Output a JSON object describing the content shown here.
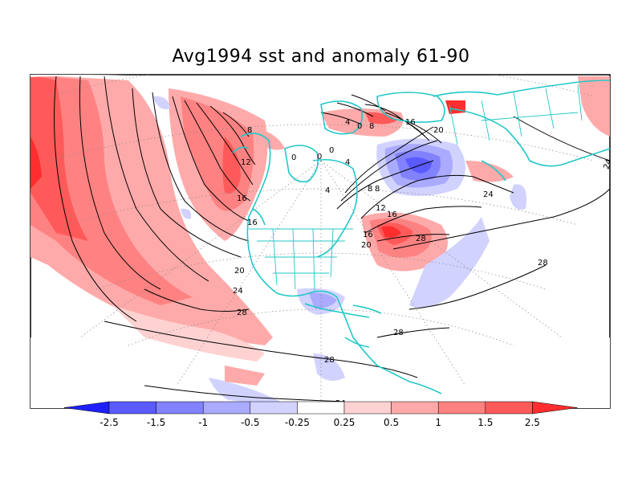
{
  "title": "Avg1994 sst and anomaly 61-90",
  "contours": {
    "labels": [
      "8",
      "4",
      "0",
      "0",
      "0",
      "4",
      "12",
      "16",
      "16",
      "20",
      "24",
      "28",
      "16",
      "20",
      "8",
      "4",
      "0",
      "8",
      "8",
      "12",
      "16",
      "16",
      "20",
      "24",
      "28",
      "28",
      "28",
      "28",
      "24",
      "24"
    ]
  },
  "colorbar": {
    "ticks": [
      "-2.5",
      "-1.5",
      "-1",
      "-0.5",
      "-0.25",
      "0.25",
      "0.5",
      "1",
      "1.5",
      "2.5"
    ],
    "colors": [
      "#1f1fff",
      "#5a5aff",
      "#8282ff",
      "#aaaaff",
      "#d2d2ff",
      "#ffffff",
      "#ffd2d2",
      "#ffaaaa",
      "#ff8282",
      "#ff5a5a",
      "#ff2d2d"
    ]
  }
}
